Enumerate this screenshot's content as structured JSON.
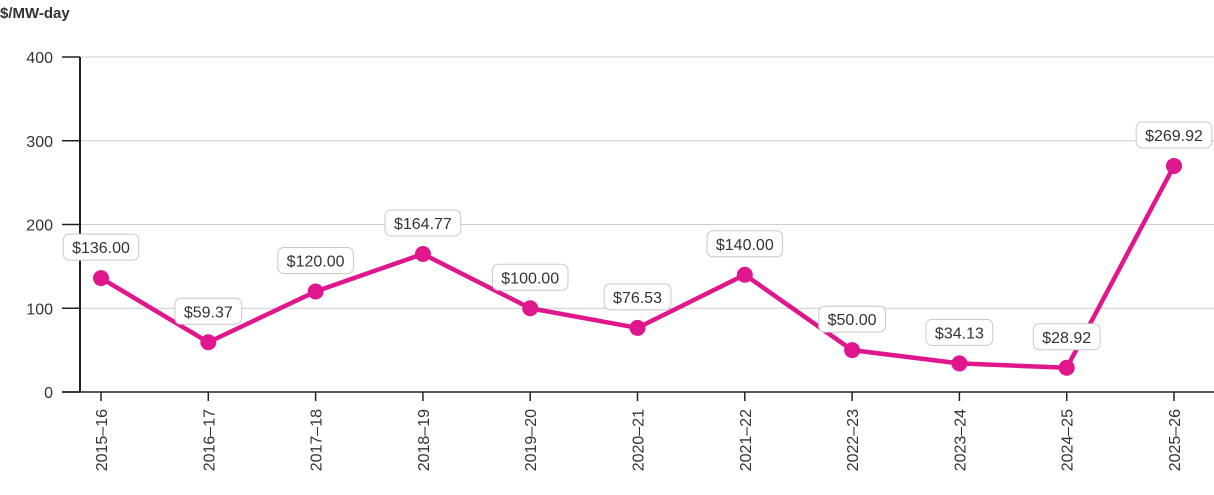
{
  "chart_data": {
    "type": "line",
    "ylabel": "$/MW-day",
    "xlabel": "",
    "ylim": [
      0,
      400
    ],
    "yticks": [
      0,
      100,
      200,
      300,
      400
    ],
    "grid": true,
    "categories": [
      "2015–16",
      "2016–17",
      "2017–18",
      "2018–19",
      "2019–20",
      "2020–21",
      "2021–22",
      "2022–23",
      "2023–24",
      "2024–25",
      "2025–26"
    ],
    "values": [
      136.0,
      59.37,
      120.0,
      164.77,
      100.0,
      76.53,
      140.0,
      50.0,
      34.13,
      28.92,
      269.92
    ],
    "data_labels": [
      "$136.00",
      "$59.37",
      "$120.00",
      "$164.77",
      "$100.00",
      "$76.53",
      "$140.00",
      "$50.00",
      "$34.13",
      "$28.92",
      "$269.92"
    ],
    "series_color": "#e0168c",
    "grid_color": "#cccccc",
    "text_color": "#333333"
  }
}
